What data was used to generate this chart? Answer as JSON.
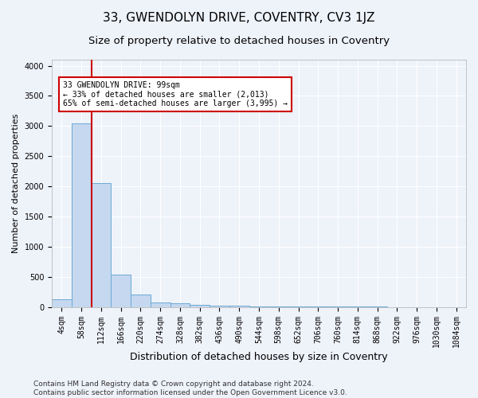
{
  "title": "33, GWENDOLYN DRIVE, COVENTRY, CV3 1JZ",
  "subtitle": "Size of property relative to detached houses in Coventry",
  "xlabel": "Distribution of detached houses by size in Coventry",
  "ylabel": "Number of detached properties",
  "bar_labels": [
    "4sqm",
    "58sqm",
    "112sqm",
    "166sqm",
    "220sqm",
    "274sqm",
    "328sqm",
    "382sqm",
    "436sqm",
    "490sqm",
    "544sqm",
    "598sqm",
    "652sqm",
    "706sqm",
    "760sqm",
    "814sqm",
    "868sqm",
    "922sqm",
    "976sqm",
    "1030sqm",
    "1084sqm"
  ],
  "bar_values": [
    130,
    3050,
    2060,
    540,
    200,
    75,
    55,
    35,
    25,
    18,
    12,
    8,
    5,
    4,
    3,
    2,
    2,
    1,
    1,
    1,
    0
  ],
  "bar_color": "#c5d8ef",
  "bar_edge_color": "#6aaad4",
  "vline_x_index": 1,
  "vline_color": "#cc0000",
  "ylim": [
    0,
    4100
  ],
  "yticks": [
    0,
    500,
    1000,
    1500,
    2000,
    2500,
    3000,
    3500,
    4000
  ],
  "annotation_text": "33 GWENDOLYN DRIVE: 99sqm\n← 33% of detached houses are smaller (2,013)\n65% of semi-detached houses are larger (3,995) →",
  "annotation_box_color": "#ffffff",
  "annotation_box_edge": "#cc0000",
  "footer_line1": "Contains HM Land Registry data © Crown copyright and database right 2024.",
  "footer_line2": "Contains public sector information licensed under the Open Government Licence v3.0.",
  "bg_color": "#eef2f9",
  "plot_bg_color": "#eef2f9",
  "title_fontsize": 11,
  "subtitle_fontsize": 9.5,
  "xlabel_fontsize": 9,
  "ylabel_fontsize": 8,
  "tick_fontsize": 7,
  "annot_fontsize": 7,
  "footer_fontsize": 6.5
}
